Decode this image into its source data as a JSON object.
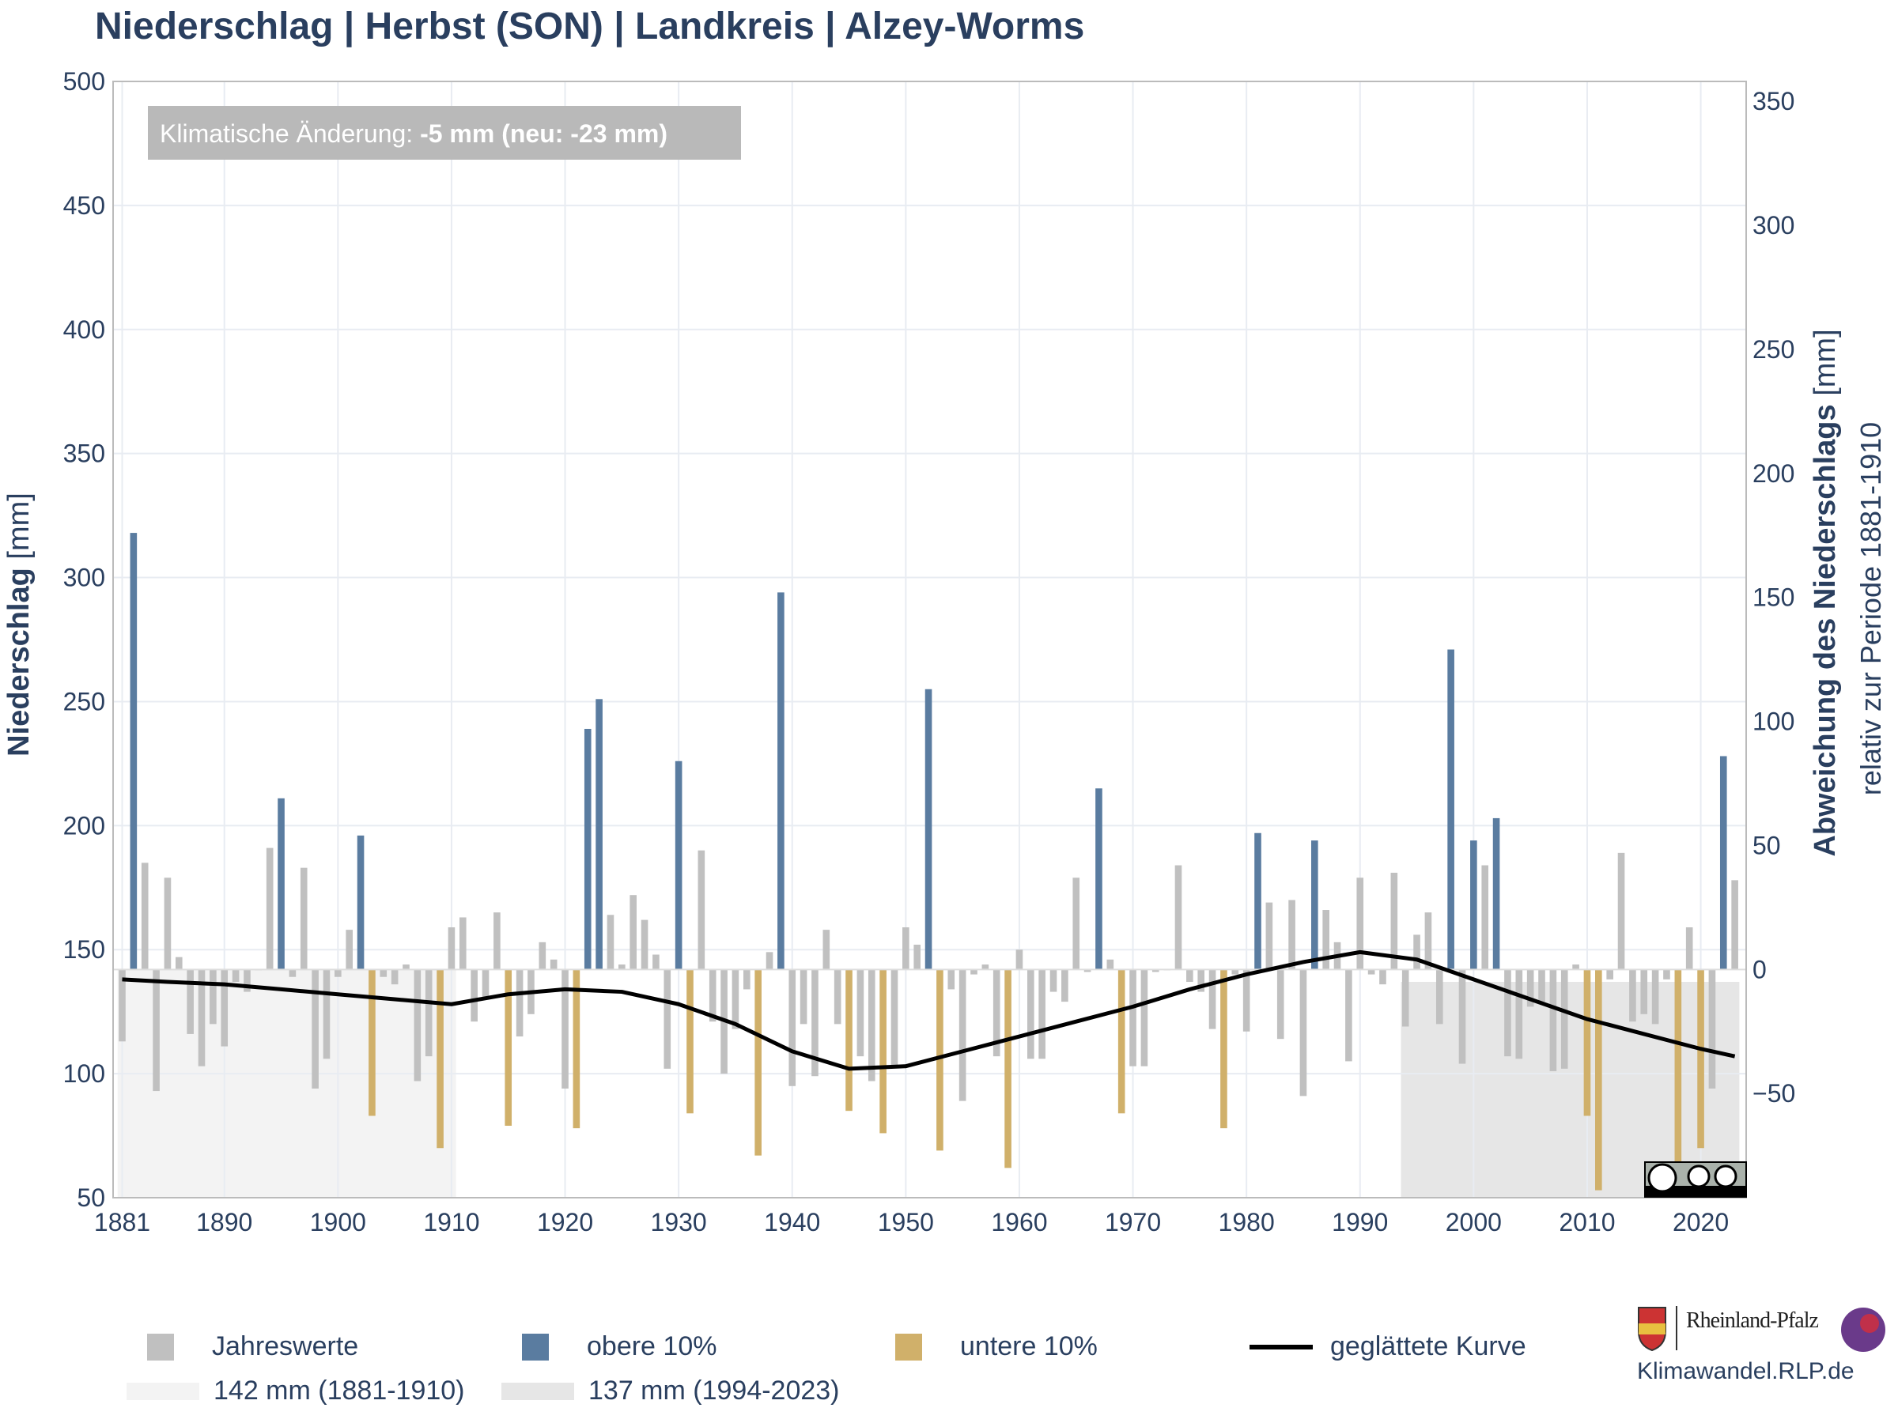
{
  "title": "Niederschlag | Herbst (SON) | Landkreis | Alzey-Worms",
  "annotation": {
    "label": "Klimatische Änderung: ",
    "value": "-5 mm (neu: -23 mm)"
  },
  "colors": {
    "normal": "#c0c0c0",
    "upper": "#5a7ca0",
    "lower": "#d0b06a",
    "smooth": "#000000",
    "band_ref": "#f3f3f3",
    "band_new": "#e6e6e6",
    "grid": "#e8ecf2"
  },
  "chart_data": {
    "type": "bar",
    "title": "Niederschlag | Herbst (SON) | Landkreis | Alzey-Worms",
    "ylabel_left_bold": "Niederschlag",
    "ylabel_left_unit": " [mm]",
    "ylabel_right_bold": "Abweichung des Niederschlags",
    "ylabel_right_unit": " [mm]",
    "ylabel_right_sub": "relativ zur Periode 1881-1910",
    "ylim_left": [
      50,
      500
    ],
    "ylim_right": [
      -92,
      358
    ],
    "left_ticks": [
      50,
      100,
      150,
      200,
      250,
      300,
      350,
      400,
      450,
      500
    ],
    "right_ticks": [
      -50,
      0,
      50,
      100,
      150,
      200,
      250,
      300,
      350
    ],
    "x_ticks": [
      1881,
      1890,
      1900,
      1910,
      1920,
      1930,
      1940,
      1950,
      1960,
      1970,
      1980,
      1990,
      2000,
      2010,
      2020
    ],
    "baseline": 142,
    "years": [
      1881,
      1882,
      1883,
      1884,
      1885,
      1886,
      1887,
      1888,
      1889,
      1890,
      1891,
      1892,
      1893,
      1894,
      1895,
      1896,
      1897,
      1898,
      1899,
      1900,
      1901,
      1902,
      1903,
      1904,
      1905,
      1906,
      1907,
      1908,
      1909,
      1910,
      1911,
      1912,
      1913,
      1914,
      1915,
      1916,
      1917,
      1918,
      1919,
      1920,
      1921,
      1922,
      1923,
      1924,
      1925,
      1926,
      1927,
      1928,
      1929,
      1930,
      1931,
      1932,
      1933,
      1934,
      1935,
      1936,
      1937,
      1938,
      1939,
      1940,
      1941,
      1942,
      1943,
      1944,
      1945,
      1946,
      1947,
      1948,
      1949,
      1950,
      1951,
      1952,
      1953,
      1954,
      1955,
      1956,
      1957,
      1958,
      1959,
      1960,
      1961,
      1962,
      1963,
      1964,
      1965,
      1966,
      1967,
      1968,
      1969,
      1970,
      1971,
      1972,
      1973,
      1974,
      1975,
      1976,
      1977,
      1978,
      1979,
      1980,
      1981,
      1982,
      1983,
      1984,
      1985,
      1986,
      1987,
      1988,
      1989,
      1990,
      1991,
      1992,
      1993,
      1994,
      1995,
      1996,
      1997,
      1998,
      1999,
      2000,
      2001,
      2002,
      2003,
      2004,
      2005,
      2006,
      2007,
      2008,
      2009,
      2010,
      2011,
      2012,
      2013,
      2014,
      2015,
      2016,
      2017,
      2018,
      2019,
      2020,
      2021,
      2022,
      2023
    ],
    "values": [
      113,
      318,
      185,
      93,
      179,
      147,
      116,
      103,
      120,
      111,
      137,
      133,
      142,
      191,
      211,
      139,
      183,
      94,
      106,
      139,
      158,
      196,
      83,
      139,
      136,
      144,
      97,
      107,
      70,
      159,
      163,
      121,
      131,
      165,
      79,
      115,
      124,
      153,
      146,
      94,
      78,
      239,
      251,
      164,
      144,
      172,
      162,
      148,
      102,
      226,
      84,
      190,
      121,
      100,
      118,
      134,
      67,
      149,
      294,
      95,
      120,
      99,
      158,
      120,
      85,
      107,
      97,
      76,
      103,
      159,
      152,
      255,
      69,
      134,
      89,
      140,
      144,
      107,
      62,
      150,
      106,
      106,
      133,
      129,
      179,
      141,
      215,
      146,
      84,
      103,
      103,
      141,
      142,
      184,
      137,
      133,
      118,
      78,
      140,
      117,
      197,
      169,
      114,
      170,
      91,
      194,
      166,
      153,
      105,
      179,
      140,
      136,
      181,
      119,
      156,
      165,
      120,
      271,
      104,
      194,
      184,
      203,
      107,
      106,
      127,
      129,
      101,
      102,
      144,
      83,
      53,
      138,
      189,
      121,
      124,
      120,
      138,
      64,
      159,
      70,
      94,
      228,
      178
    ],
    "category": [
      "n",
      "u",
      "n",
      "n",
      "n",
      "n",
      "n",
      "n",
      "n",
      "n",
      "n",
      "n",
      "n",
      "n",
      "u",
      "n",
      "n",
      "n",
      "n",
      "n",
      "n",
      "u",
      "l",
      "n",
      "n",
      "n",
      "n",
      "n",
      "l",
      "n",
      "n",
      "n",
      "n",
      "n",
      "l",
      "n",
      "n",
      "n",
      "n",
      "n",
      "l",
      "u",
      "u",
      "n",
      "n",
      "n",
      "n",
      "n",
      "n",
      "u",
      "l",
      "n",
      "n",
      "n",
      "n",
      "n",
      "l",
      "n",
      "u",
      "n",
      "n",
      "n",
      "n",
      "n",
      "l",
      "n",
      "n",
      "l",
      "n",
      "n",
      "n",
      "u",
      "l",
      "n",
      "n",
      "n",
      "n",
      "n",
      "l",
      "n",
      "n",
      "n",
      "n",
      "n",
      "n",
      "n",
      "u",
      "n",
      "l",
      "n",
      "n",
      "n",
      "n",
      "n",
      "n",
      "n",
      "n",
      "l",
      "n",
      "n",
      "u",
      "n",
      "n",
      "n",
      "n",
      "u",
      "n",
      "n",
      "n",
      "n",
      "n",
      "n",
      "n",
      "n",
      "n",
      "n",
      "n",
      "u",
      "n",
      "u",
      "n",
      "u",
      "n",
      "n",
      "n",
      "n",
      "n",
      "n",
      "n",
      "l",
      "l",
      "n",
      "n",
      "n",
      "n",
      "n",
      "n",
      "l",
      "n",
      "l",
      "n",
      "u",
      "n"
    ],
    "smooth_x": [
      1881,
      1885,
      1890,
      1895,
      1900,
      1905,
      1910,
      1915,
      1920,
      1925,
      1930,
      1935,
      1940,
      1945,
      1950,
      1955,
      1960,
      1965,
      1970,
      1975,
      1980,
      1985,
      1990,
      1995,
      2000,
      2005,
      2010,
      2015,
      2020,
      2023
    ],
    "smooth_y": [
      138,
      137,
      136,
      134,
      132,
      130,
      128,
      132,
      134,
      133,
      128,
      120,
      109,
      102,
      103,
      109,
      115,
      121,
      127,
      134,
      140,
      145,
      149,
      146,
      138,
      130,
      122,
      116,
      110,
      107
    ],
    "bands": [
      {
        "from": 1881,
        "to": 1910,
        "value": 142,
        "label": "142 mm (1881-1910)"
      },
      {
        "from": 1994,
        "to": 2023,
        "value": 137,
        "label": "137 mm (1994-2023)"
      }
    ],
    "legend": {
      "normal": "Jahreswerte",
      "upper": "obere 10%",
      "lower": "untere 10%",
      "smooth": "geglättete Kurve"
    }
  },
  "branding": {
    "name": "Rheinland-Pfalz",
    "site": "Klimawandel.RLP.de"
  }
}
